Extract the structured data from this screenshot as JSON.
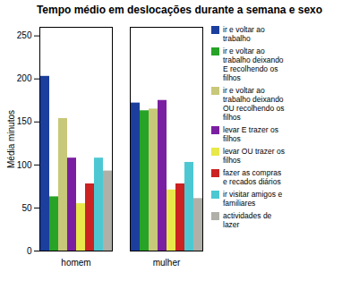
{
  "chart_data": {
    "type": "bar",
    "title": "Tempo médio em deslocações durante a semana e sexo",
    "ylabel": "Média minutos",
    "categories": [
      "homem",
      "mulher"
    ],
    "series": [
      {
        "name": "ir e voltar ao\ntrabalho",
        "color": "#1c3f9e",
        "values": [
          203,
          172
        ]
      },
      {
        "name": "ir e voltar ao\ntrabalho deixando\nE recolhendo os\nfilhos",
        "color": "#27a327",
        "values": [
          63,
          163
        ]
      },
      {
        "name": "ir e voltar ao\ntrabalho deixando\nOU recolhendo os\nfilhos",
        "color": "#c8c87a",
        "values": [
          154,
          165
        ]
      },
      {
        "name": "levar E trazer os\nfilhos",
        "color": "#7b1fa2",
        "values": [
          108,
          175
        ]
      },
      {
        "name": "levar OU trazer os\nfilhos",
        "color": "#e8e84a",
        "values": [
          55,
          71
        ]
      },
      {
        "name": "fazer as compras\ne recados diários",
        "color": "#cc2222",
        "values": [
          78,
          78
        ]
      },
      {
        "name": "ir visitar amigos e\nfamiliares",
        "color": "#4dc8d2",
        "values": [
          108,
          103
        ]
      },
      {
        "name": "actividades de\nlazer",
        "color": "#b0b0a8",
        "values": [
          93,
          61
        ]
      }
    ],
    "ylim": [
      0,
      260
    ],
    "yticks": [
      0,
      50,
      100,
      150,
      200,
      250
    ],
    "grid": false,
    "legend": "upper right"
  }
}
